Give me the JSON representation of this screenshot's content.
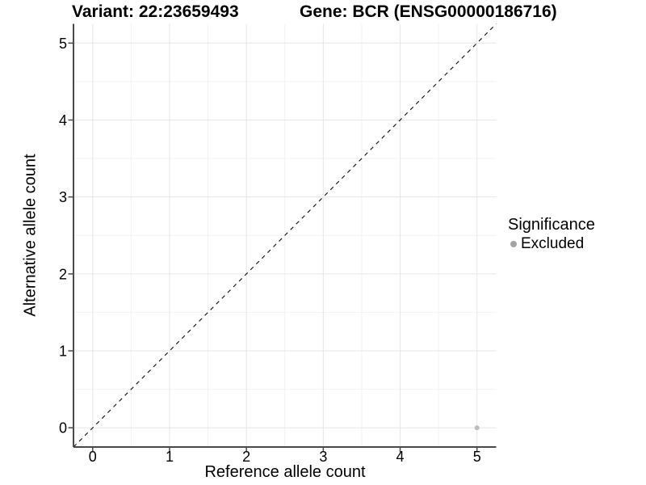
{
  "chart_data": {
    "type": "scatter",
    "title_left": "Variant: 22:23659493",
    "title_right": "Gene: BCR (ENSG00000186716)",
    "xlabel": "Reference allele count",
    "ylabel": "Alternative allele count",
    "xlim": [
      -0.25,
      5.25
    ],
    "ylim": [
      -0.25,
      5.25
    ],
    "xticks": [
      0,
      1,
      2,
      3,
      4,
      5
    ],
    "yticks": [
      0,
      1,
      2,
      3,
      4,
      5
    ],
    "minor_grid_step": 0.5,
    "grid": "major+minor",
    "reference_line": {
      "type": "identity",
      "x1": -0.25,
      "y1": -0.25,
      "x2": 5.25,
      "y2": 5.25,
      "dashed": true,
      "color": "#1a1a1a"
    },
    "series": [
      {
        "name": "Excluded",
        "color": "#bdbdbd",
        "points": [
          {
            "x": 5,
            "y": 0
          }
        ]
      }
    ],
    "legend": {
      "title": "Significance",
      "position": "right",
      "items": [
        {
          "label": "Excluded",
          "color": "#a3a3a3"
        }
      ]
    },
    "colors": {
      "background": "#ffffff",
      "grid_major": "#e6e6e6",
      "grid_minor": "#f2f2f2",
      "axis_line": "#4a4a4a",
      "tick_mark": "#4a4a4a",
      "text": "#000000"
    }
  }
}
